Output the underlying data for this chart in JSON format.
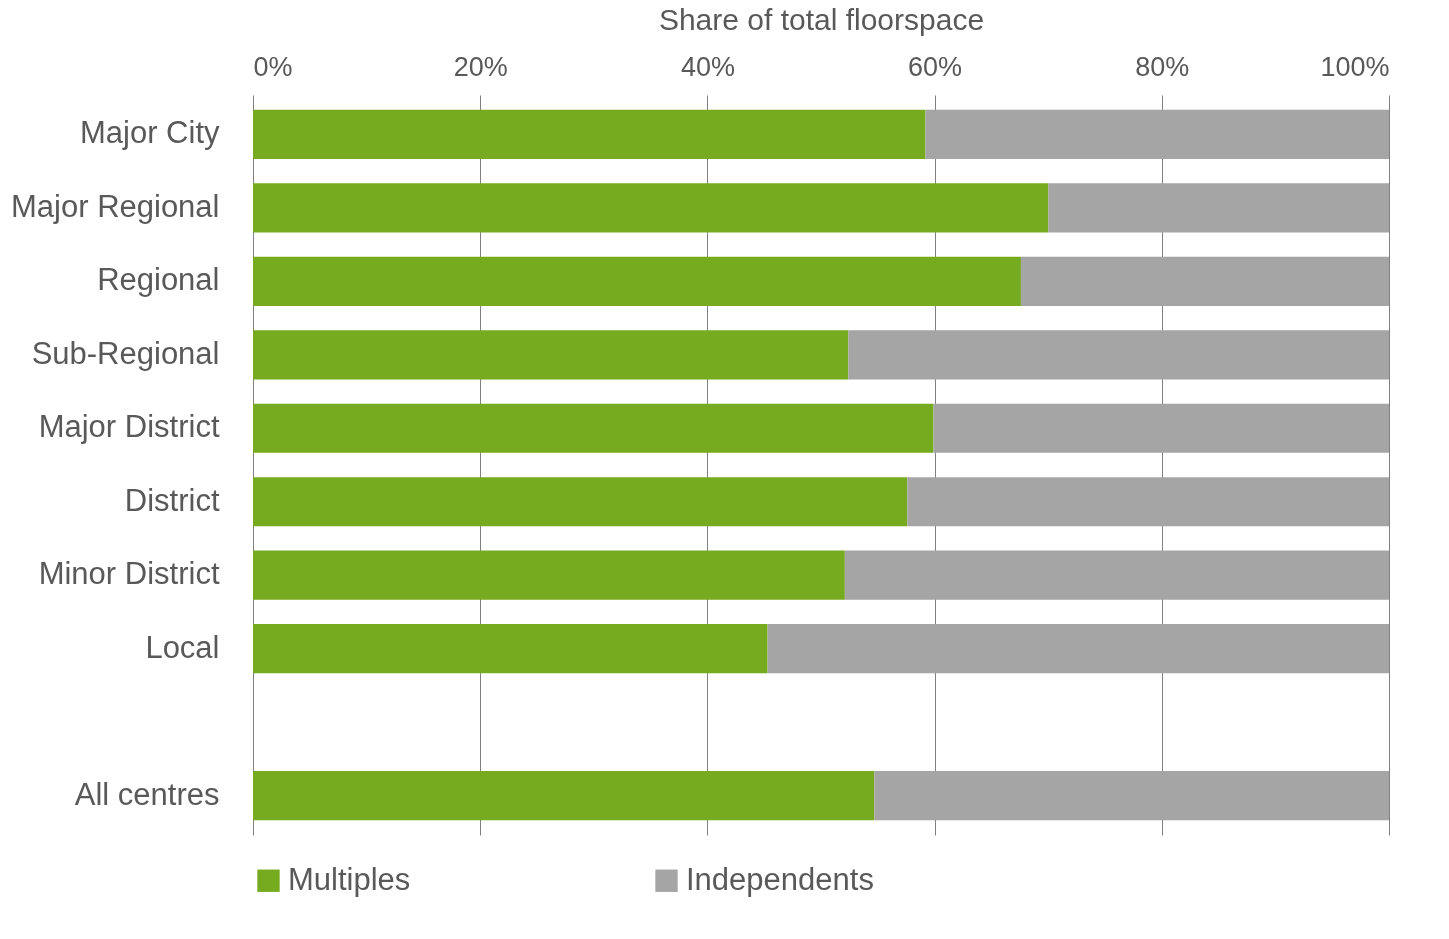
{
  "chart_data": {
    "type": "bar",
    "orientation": "horizontal",
    "stacked": true,
    "xlabel": "Share of total floorspace",
    "categories": [
      "Major City",
      "Major Regional",
      "Regional",
      "Sub-Regional",
      "Major District",
      "District",
      "Minor District",
      "Local",
      null,
      "All centres"
    ],
    "series": [
      {
        "name": "Multiples",
        "color": "#76ab1f",
        "values": [
          59.2,
          70.0,
          67.6,
          52.4,
          59.9,
          57.6,
          52.1,
          45.3,
          null,
          54.7
        ]
      },
      {
        "name": "Independents",
        "color": "#a5a5a5",
        "values": [
          40.8,
          30.0,
          32.4,
          47.6,
          40.1,
          42.4,
          47.9,
          54.7,
          null,
          45.3
        ]
      }
    ],
    "xlim": [
      0,
      100
    ],
    "xticks": [
      {
        "value": 0,
        "label": "0%"
      },
      {
        "value": 20,
        "label": "20%"
      },
      {
        "value": 40,
        "label": "40%"
      },
      {
        "value": 60,
        "label": "60%"
      },
      {
        "value": 80,
        "label": "80%"
      },
      {
        "value": 100,
        "label": "100%"
      }
    ],
    "grid": "x",
    "legend": "bottom"
  }
}
